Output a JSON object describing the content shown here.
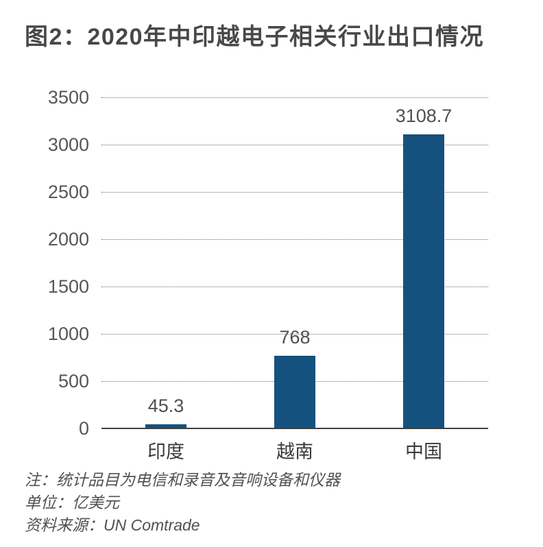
{
  "title": "图2：2020年中印越电子相关行业出口情况",
  "chart_data": {
    "type": "bar",
    "categories": [
      "印度",
      "越南",
      "中国"
    ],
    "values": [
      45.3,
      768,
      3108.7
    ],
    "value_labels": [
      "45.3",
      "768",
      "3108.7"
    ],
    "yticks": [
      0,
      500,
      1000,
      1500,
      2000,
      2500,
      3000,
      3500
    ],
    "ylim": [
      0,
      3500
    ],
    "grid": "horizontal-dotted",
    "legend": "none",
    "bar_color": "#15517f",
    "title": "图2：2020年中印越电子相关行业出口情况",
    "xlabel": "",
    "ylabel": ""
  },
  "notes": {
    "note": "注：统计品目为电信和录音及音响设备和仪器",
    "unit": "单位：亿美元",
    "source": "资料来源：UN Comtrade"
  },
  "colors": {
    "bar": "#15517f",
    "title_text": "#484848",
    "axis_text": "#565656",
    "baseline": "#3f3f3f",
    "gridline": "#6e6e6e",
    "background": "#ffffff"
  }
}
